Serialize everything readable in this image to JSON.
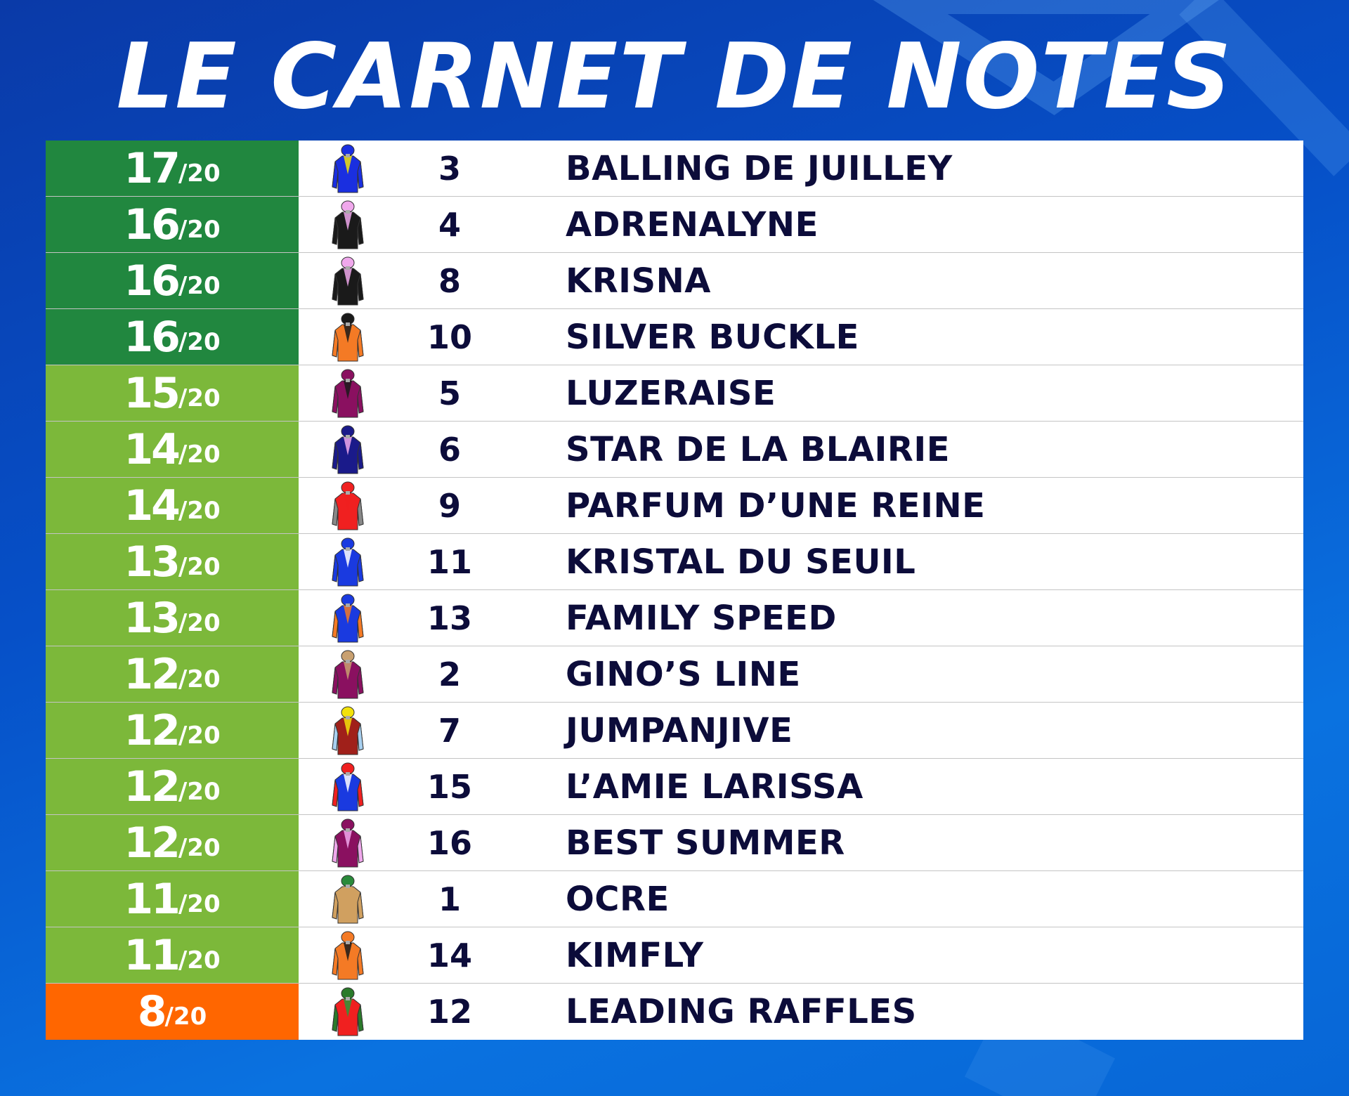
{
  "title": "LE CARNET DE NOTES",
  "colors": {
    "top": "#21873f",
    "good": "#7cb83a",
    "low": "#ff6600",
    "text": "#0c0c3a"
  },
  "rows": [
    {
      "score": "17",
      "den": "/20",
      "num": "3",
      "name": "BALLING DE JUILLEY",
      "tier": "top",
      "body": "#1a2fe0",
      "sleeve": "#1a2fe0",
      "cap": "#1a2fe0",
      "accent": "#f2e20a"
    },
    {
      "score": "16",
      "den": "/20",
      "num": "4",
      "name": "ADRENALYNE",
      "tier": "top",
      "body": "#1a1a1a",
      "sleeve": "#1a1a1a",
      "cap": "#f0a8ec",
      "accent": "#f0a8ec"
    },
    {
      "score": "16",
      "den": "/20",
      "num": "8",
      "name": "KRISNA",
      "tier": "top",
      "body": "#1a1a1a",
      "sleeve": "#1a1a1a",
      "cap": "#f0a8ec",
      "accent": "#f0a8ec"
    },
    {
      "score": "16",
      "den": "/20",
      "num": "10",
      "name": "SILVER BUCKLE",
      "tier": "top",
      "body": "#f47a25",
      "sleeve": "#f47a25",
      "cap": "#1a1a1a",
      "accent": "#1a1a1a"
    },
    {
      "score": "15",
      "den": "/20",
      "num": "5",
      "name": "LUZERAISE",
      "tier": "good",
      "body": "#8a1060",
      "sleeve": "#8a1060",
      "cap": "#8a1060",
      "accent": "#1a1a1a"
    },
    {
      "score": "14",
      "den": "/20",
      "num": "6",
      "name": "STAR DE LA BLAIRIE",
      "tier": "good",
      "body": "#1a1a8a",
      "sleeve": "#1a1a8a",
      "cap": "#1a1a8a",
      "accent": "#f0a8ec"
    },
    {
      "score": "14",
      "den": "/20",
      "num": "9",
      "name": "PARFUM D’UNE REINE",
      "tier": "good",
      "body": "#f02020",
      "sleeve": "#888888",
      "cap": "#f02020",
      "accent": "#f02020"
    },
    {
      "score": "13",
      "den": "/20",
      "num": "11",
      "name": "KRISTAL DU SEUIL",
      "tier": "good",
      "body": "#1a3ae0",
      "sleeve": "#1a3ae0",
      "cap": "#1a3ae0",
      "accent": "#ffffff"
    },
    {
      "score": "13",
      "den": "/20",
      "num": "13",
      "name": "FAMILY SPEED",
      "tier": "good",
      "body": "#1a3ae0",
      "sleeve": "#f47a25",
      "cap": "#1a3ae0",
      "accent": "#f47a25"
    },
    {
      "score": "12",
      "den": "/20",
      "num": "2",
      "name": "GINO’S LINE",
      "tier": "good",
      "body": "#8a1060",
      "sleeve": "#8a1060",
      "cap": "#c8a070",
      "accent": "#c8a070"
    },
    {
      "score": "12",
      "den": "/20",
      "num": "7",
      "name": "JUMPANJIVE",
      "tier": "good",
      "body": "#a0201a",
      "sleeve": "#a8d0f0",
      "cap": "#f2e20a",
      "accent": "#f2e20a"
    },
    {
      "score": "12",
      "den": "/20",
      "num": "15",
      "name": "L’AMIE LARISSA",
      "tier": "good",
      "body": "#1a3ae0",
      "sleeve": "#f02020",
      "cap": "#f02020",
      "accent": "#ffffff"
    },
    {
      "score": "12",
      "den": "/20",
      "num": "16",
      "name": "BEST SUMMER",
      "tier": "good",
      "body": "#8a1060",
      "sleeve": "#f0a8ec",
      "cap": "#8a1060",
      "accent": "#f0a8ec"
    },
    {
      "score": "11",
      "den": "/20",
      "num": "1",
      "name": "OCRE",
      "tier": "good",
      "body": "#d0a060",
      "sleeve": "#d0a060",
      "cap": "#2a8a3a",
      "accent": "#d0a060"
    },
    {
      "score": "11",
      "den": "/20",
      "num": "14",
      "name": "KIMFLY",
      "tier": "good",
      "body": "#f47a25",
      "sleeve": "#f47a25",
      "cap": "#f47a25",
      "accent": "#1a1a1a"
    },
    {
      "score": "8",
      "den": "/20",
      "num": "12",
      "name": "LEADING RAFFLES",
      "tier": "low",
      "body": "#f02020",
      "sleeve": "#2a7a2a",
      "cap": "#2a7a2a",
      "accent": "#2a9a3a"
    }
  ]
}
